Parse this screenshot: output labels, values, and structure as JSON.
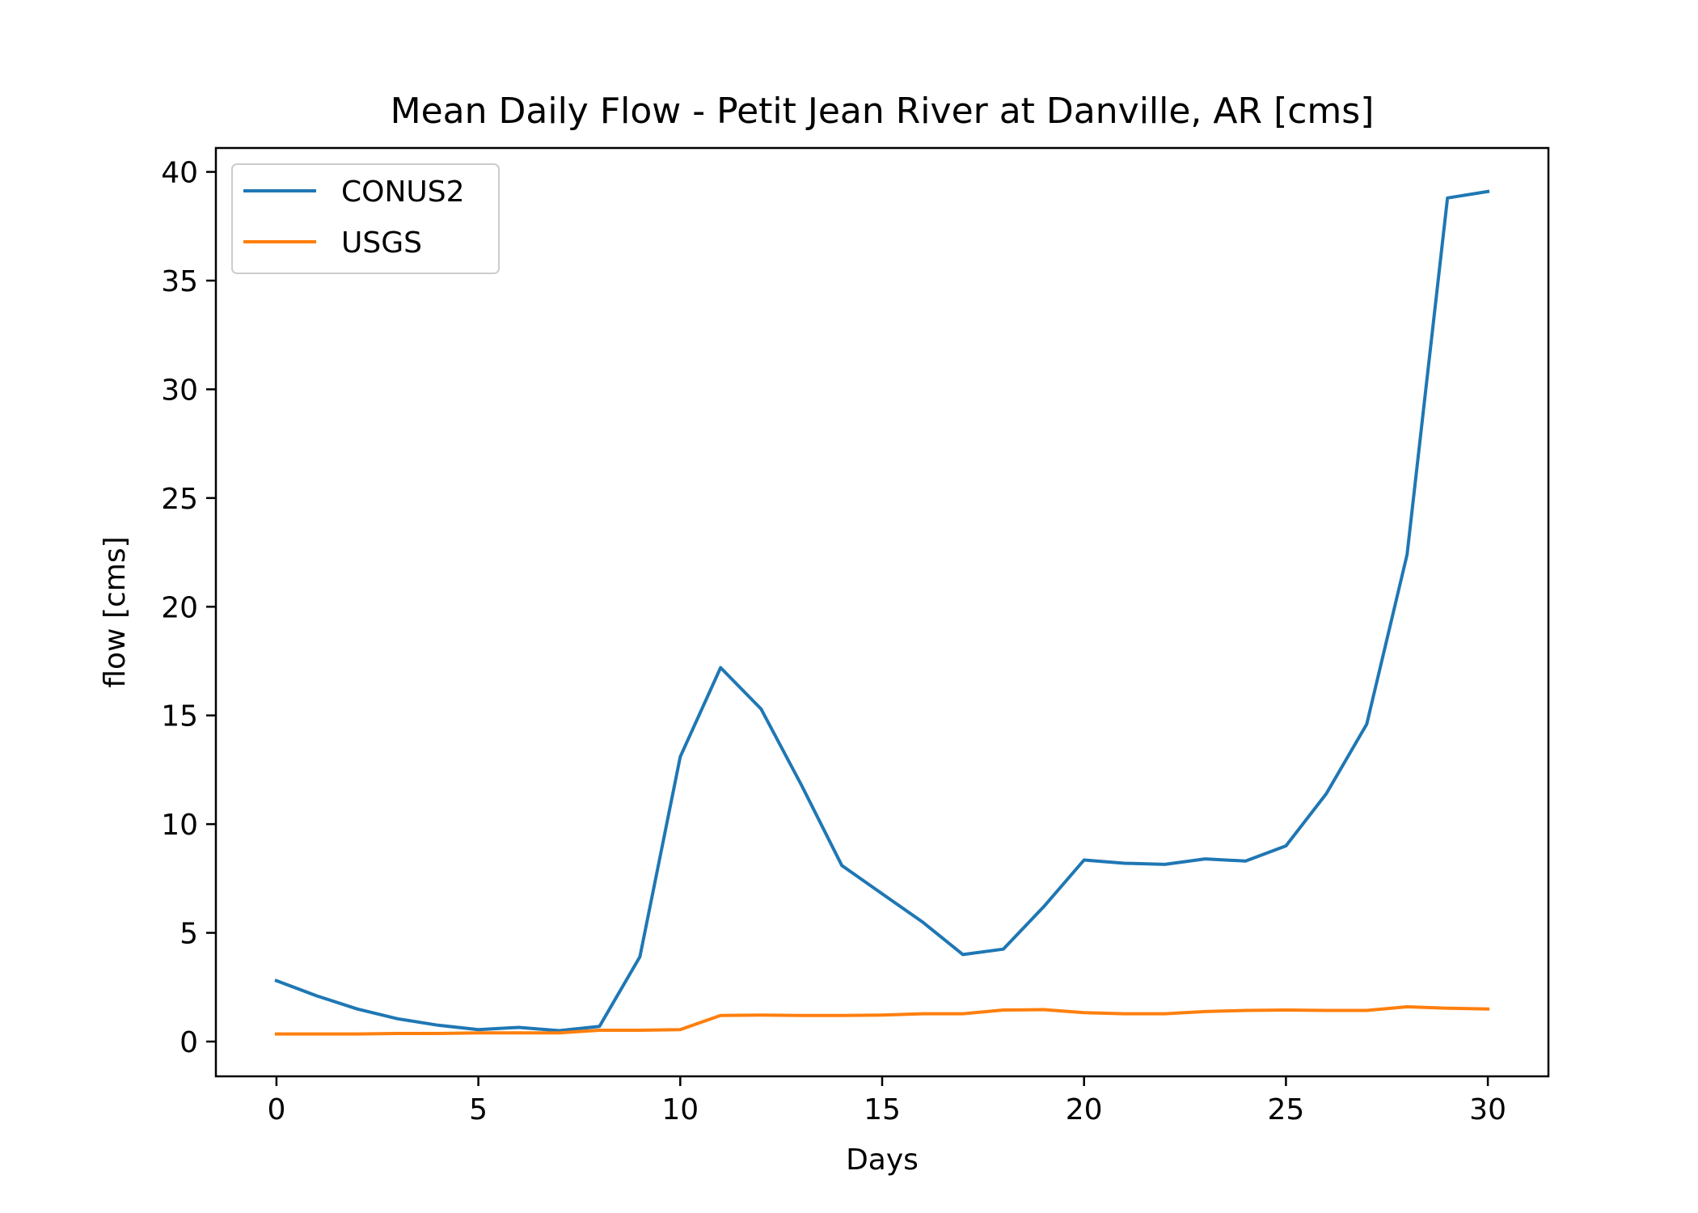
{
  "chart_data": {
    "type": "line",
    "title": "Mean Daily Flow - Petit Jean River at Danville, AR [cms]",
    "xlabel": "Days",
    "ylabel": "flow [cms]",
    "xlim": [
      -1.5,
      31.5
    ],
    "ylim": [
      -1.6,
      41.1
    ],
    "xticks": [
      0,
      5,
      10,
      15,
      20,
      25,
      30
    ],
    "yticks": [
      0,
      5,
      10,
      15,
      20,
      25,
      30,
      35,
      40
    ],
    "grid": false,
    "legend_position": "upper-left",
    "x": [
      0,
      1,
      2,
      3,
      4,
      5,
      6,
      7,
      8,
      9,
      10,
      11,
      12,
      13,
      14,
      15,
      16,
      17,
      18,
      19,
      20,
      21,
      22,
      23,
      24,
      25,
      26,
      27,
      28,
      29,
      30
    ],
    "series": [
      {
        "name": "CONUS2",
        "color": "#1f77b4",
        "values": [
          2.8,
          2.1,
          1.5,
          1.05,
          0.75,
          0.55,
          0.65,
          0.5,
          0.7,
          3.9,
          13.1,
          17.2,
          15.3,
          11.8,
          8.1,
          6.8,
          5.5,
          4.0,
          4.25,
          6.2,
          8.35,
          8.2,
          8.15,
          8.4,
          8.3,
          9.0,
          11.4,
          14.6,
          22.4,
          38.8,
          39.1
        ]
      },
      {
        "name": "USGS",
        "color": "#ff7f0e",
        "values": [
          0.35,
          0.35,
          0.35,
          0.37,
          0.37,
          0.4,
          0.4,
          0.4,
          0.52,
          0.52,
          0.55,
          1.2,
          1.22,
          1.2,
          1.2,
          1.22,
          1.28,
          1.28,
          1.45,
          1.47,
          1.33,
          1.28,
          1.28,
          1.38,
          1.43,
          1.45,
          1.43,
          1.43,
          1.6,
          1.53,
          1.5
        ]
      }
    ]
  }
}
